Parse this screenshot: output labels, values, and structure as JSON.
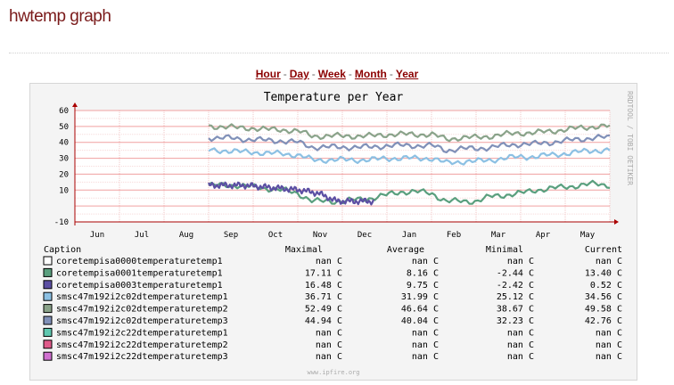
{
  "page": {
    "title": "hwtemp graph"
  },
  "ranges": [
    {
      "label": "Hour"
    },
    {
      "label": "Day"
    },
    {
      "label": "Week"
    },
    {
      "label": "Month"
    },
    {
      "label": "Year"
    }
  ],
  "range_separator": "-",
  "watermark": "RRDTOOL / TOBI OETIKER",
  "footer": "www.ipfire.org",
  "chart_data": {
    "type": "line",
    "title": "Temperature per Year",
    "x_categories": [
      "Jun",
      "Jul",
      "Aug",
      "Sep",
      "Oct",
      "Nov",
      "Dec",
      "Jan",
      "Feb",
      "Mar",
      "Apr",
      "May"
    ],
    "y_ticks": [
      "60",
      "50",
      "40",
      "30",
      "20",
      "10",
      "-10"
    ],
    "ylim": [
      -10,
      60
    ],
    "grid": true,
    "series": [
      {
        "name": "coretempisa0001temperaturetemp1",
        "color": "#5a9f7e",
        "start_month": 3,
        "end_month": 12,
        "base": [
          13,
          13,
          13,
          12,
          11,
          10,
          8,
          3,
          3,
          3,
          4,
          5,
          7,
          9,
          9,
          8,
          3,
          3,
          3,
          6,
          7,
          8,
          10,
          11,
          12,
          13,
          14,
          13
        ]
      },
      {
        "name": "coretempisa0003temperaturetemp1",
        "color": "#5c4fa3",
        "start_month": 3,
        "end_month": 6.7,
        "base": [
          13,
          13,
          13,
          12,
          11,
          10,
          8,
          3,
          3,
          3
        ]
      },
      {
        "name": "smsc47m192i2c02dtemperaturetemp1",
        "color": "#8cc0e3",
        "start_month": 3,
        "end_month": 12,
        "base": [
          35,
          35,
          34,
          34,
          33,
          33,
          32,
          29,
          29,
          29,
          29,
          29,
          30,
          30,
          30,
          30,
          27,
          28,
          28,
          29,
          30,
          31,
          31,
          32,
          33,
          34,
          35,
          35
        ]
      },
      {
        "name": "smsc47m192i2c02dtemperaturetemp2",
        "color": "#8aa38a",
        "start_month": 3,
        "end_month": 12,
        "base": [
          50,
          50,
          49,
          49,
          48,
          48,
          47,
          44,
          44,
          44,
          44,
          44,
          45,
          45,
          45,
          45,
          42,
          43,
          43,
          44,
          45,
          46,
          46,
          47,
          48,
          49,
          50,
          50
        ]
      },
      {
        "name": "smsc47m192i2c02dtemperaturetemp3",
        "color": "#8090b8",
        "start_month": 3,
        "end_month": 12,
        "base": [
          43,
          43,
          42,
          42,
          41,
          41,
          40,
          37,
          37,
          37,
          37,
          37,
          38,
          38,
          38,
          38,
          35,
          36,
          36,
          37,
          38,
          39,
          39,
          40,
          41,
          42,
          43,
          43
        ]
      }
    ]
  },
  "legend": {
    "headers": {
      "caption": "Caption",
      "maximal": "Maximal",
      "average": "Average",
      "minimal": "Minimal",
      "current": "Current"
    },
    "rows": [
      {
        "name": "coretempisa0000temperaturetemp1",
        "color": "#ffffff",
        "max": "nan C",
        "avg": "nan C",
        "min": "nan C",
        "cur": "nan C"
      },
      {
        "name": "coretempisa0001temperaturetemp1",
        "color": "#5a9f7e",
        "max": "17.11 C",
        "avg": "8.16 C",
        "min": "-2.44 C",
        "cur": "13.40 C"
      },
      {
        "name": "coretempisa0003temperaturetemp1",
        "color": "#5c4fa3",
        "max": "16.48 C",
        "avg": "9.75 C",
        "min": "-2.42 C",
        "cur": "0.52 C"
      },
      {
        "name": "smsc47m192i2c02dtemperaturetemp1",
        "color": "#8cc0e3",
        "max": "36.71 C",
        "avg": "31.99 C",
        "min": "25.12 C",
        "cur": "34.56 C"
      },
      {
        "name": "smsc47m192i2c02dtemperaturetemp2",
        "color": "#8aa38a",
        "max": "52.49 C",
        "avg": "46.64 C",
        "min": "38.67 C",
        "cur": "49.58 C"
      },
      {
        "name": "smsc47m192i2c02dtemperaturetemp3",
        "color": "#8090b8",
        "max": "44.94 C",
        "avg": "40.04 C",
        "min": "32.23 C",
        "cur": "42.76 C"
      },
      {
        "name": "smsc47m192i2c22dtemperaturetemp1",
        "color": "#5fc8b0",
        "max": "nan C",
        "avg": "nan C",
        "min": "nan C",
        "cur": "nan C"
      },
      {
        "name": "smsc47m192i2c22dtemperaturetemp2",
        "color": "#e05a8a",
        "max": "nan C",
        "avg": "nan C",
        "min": "nan C",
        "cur": "nan C"
      },
      {
        "name": "smsc47m192i2c22dtemperaturetemp3",
        "color": "#d070d0",
        "max": "nan C",
        "avg": "nan C",
        "min": "nan C",
        "cur": "nan C"
      }
    ]
  }
}
